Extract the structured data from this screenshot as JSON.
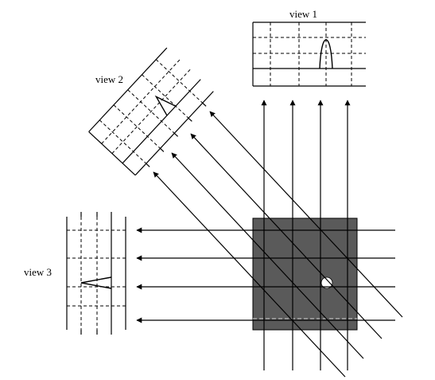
{
  "labels": {
    "view1": "view 1",
    "view2": "view 2",
    "view3": "view 3"
  },
  "colors": {
    "object": "#5a5a5a",
    "inclusion": "#ffffff",
    "line": "#000000",
    "background": "#ffffff"
  }
}
